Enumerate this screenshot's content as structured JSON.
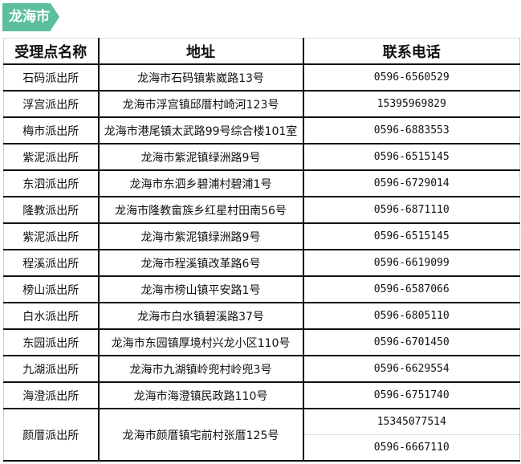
{
  "section_tag": "龙海市",
  "table": {
    "headers": [
      "受理点名称",
      "地址",
      "联系电话"
    ],
    "rows": [
      {
        "name": "石码派出所",
        "address": "龙海市石码镇紫崴路13号",
        "phones": [
          "0596-6560529"
        ]
      },
      {
        "name": "浮宫派出所",
        "address": "龙海市浮宫镇邱厝村崎河123号",
        "phones": [
          "15395969829"
        ]
      },
      {
        "name": "梅市派出所",
        "address": "龙海市港尾镇太武路99号综合楼101室",
        "phones": [
          "0596-6883553"
        ]
      },
      {
        "name": "紫泥派出所",
        "address": "龙海市紫泥镇绿洲路9号",
        "phones": [
          "0596-6515145"
        ]
      },
      {
        "name": "东泗派出所",
        "address": "龙海市东泗乡碧浦村碧浦1号",
        "phones": [
          "0596-6729014"
        ]
      },
      {
        "name": "隆教派出所",
        "address": "龙海市隆教畲族乡红星村田南56号",
        "phones": [
          "0596-6871110"
        ]
      },
      {
        "name": "紫泥派出所",
        "address": "龙海市紫泥镇绿洲路9号",
        "phones": [
          "0596-6515145"
        ]
      },
      {
        "name": "程溪派出所",
        "address": "龙海市程溪镇改革路6号",
        "phones": [
          "0596-6619099"
        ]
      },
      {
        "name": "榜山派出所",
        "address": "龙海市榜山镇平安路1号",
        "phones": [
          "0596-6587066"
        ]
      },
      {
        "name": "白水派出所",
        "address": "龙海市白水镇碧溪路37号",
        "phones": [
          "0596-6805110"
        ]
      },
      {
        "name": "东园派出所",
        "address": "龙海市东园镇厚境村兴龙小区110号",
        "phones": [
          "0596-6701450"
        ]
      },
      {
        "name": "九湖派出所",
        "address": "龙海市九湖镇岭兜村岭兜3号",
        "phones": [
          "0596-6629554"
        ]
      },
      {
        "name": "海澄派出所",
        "address": "龙海市海澄镇民政路110号",
        "phones": [
          "0596-6751740"
        ]
      },
      {
        "name": "颜厝派出所",
        "address": "龙海市颜厝镇宅前村张厝125号",
        "phones": [
          "15345077514",
          "0596-6667110"
        ]
      }
    ]
  }
}
